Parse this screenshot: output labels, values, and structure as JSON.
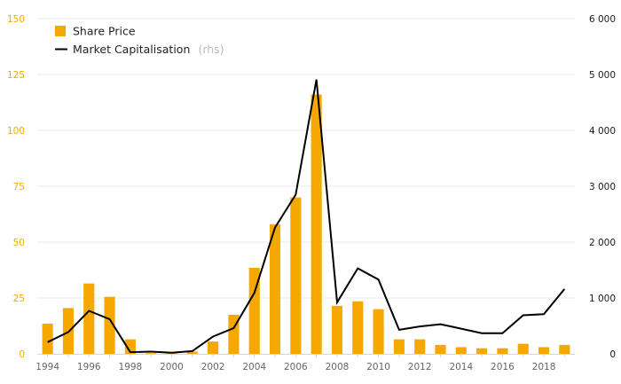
{
  "colors": {
    "bar": "#f7a800",
    "line": "#000000",
    "left_axis_text": "#f2a900",
    "right_axis_text": "#1a1a1a"
  },
  "chart_data": {
    "type": "bar",
    "title": "",
    "xlabel": "",
    "ylabel": "",
    "grid": true,
    "legend_position": "top-left",
    "x": [
      1994,
      1995,
      1996,
      1997,
      1998,
      1999,
      2000,
      2001,
      2002,
      2003,
      2004,
      2005,
      2006,
      2007,
      2008,
      2009,
      2010,
      2011,
      2012,
      2013,
      2014,
      2015,
      2016,
      2017,
      2018,
      2019
    ],
    "x_tick_labels": [
      "1994",
      "1996",
      "1998",
      "2000",
      "2002",
      "2004",
      "2006",
      "2008",
      "2010",
      "2012",
      "2014",
      "2016",
      "2018"
    ],
    "y_left": {
      "lim": [
        0,
        150
      ],
      "ticks": [
        "0",
        "25",
        "50",
        "75",
        "100",
        "125",
        "150"
      ]
    },
    "y_right": {
      "lim": [
        0,
        6000
      ],
      "ticks": [
        "0",
        "1 000",
        "2 000",
        "3 000",
        "4 000",
        "5 000",
        "6 000"
      ]
    },
    "series": [
      {
        "name": "Share Price",
        "kind": "bar",
        "axis": "left",
        "values": [
          13.5,
          20.5,
          31.5,
          25.5,
          6.5,
          0.3,
          0.3,
          1.0,
          5.5,
          17.5,
          38.5,
          58,
          70,
          116,
          21.5,
          23.5,
          20,
          6.5,
          6.5,
          4,
          3,
          2.5,
          2.5,
          4.5,
          3,
          4
        ]
      },
      {
        "name": "Market Capitalisation",
        "name_suffix": "(rhs)",
        "kind": "line",
        "axis": "right",
        "values": [
          210,
          390,
          770,
          620,
          30,
          40,
          20,
          50,
          310,
          460,
          1090,
          2260,
          2850,
          4910,
          920,
          1530,
          1330,
          430,
          490,
          530,
          450,
          370,
          370,
          690,
          710,
          1160
        ]
      }
    ]
  }
}
